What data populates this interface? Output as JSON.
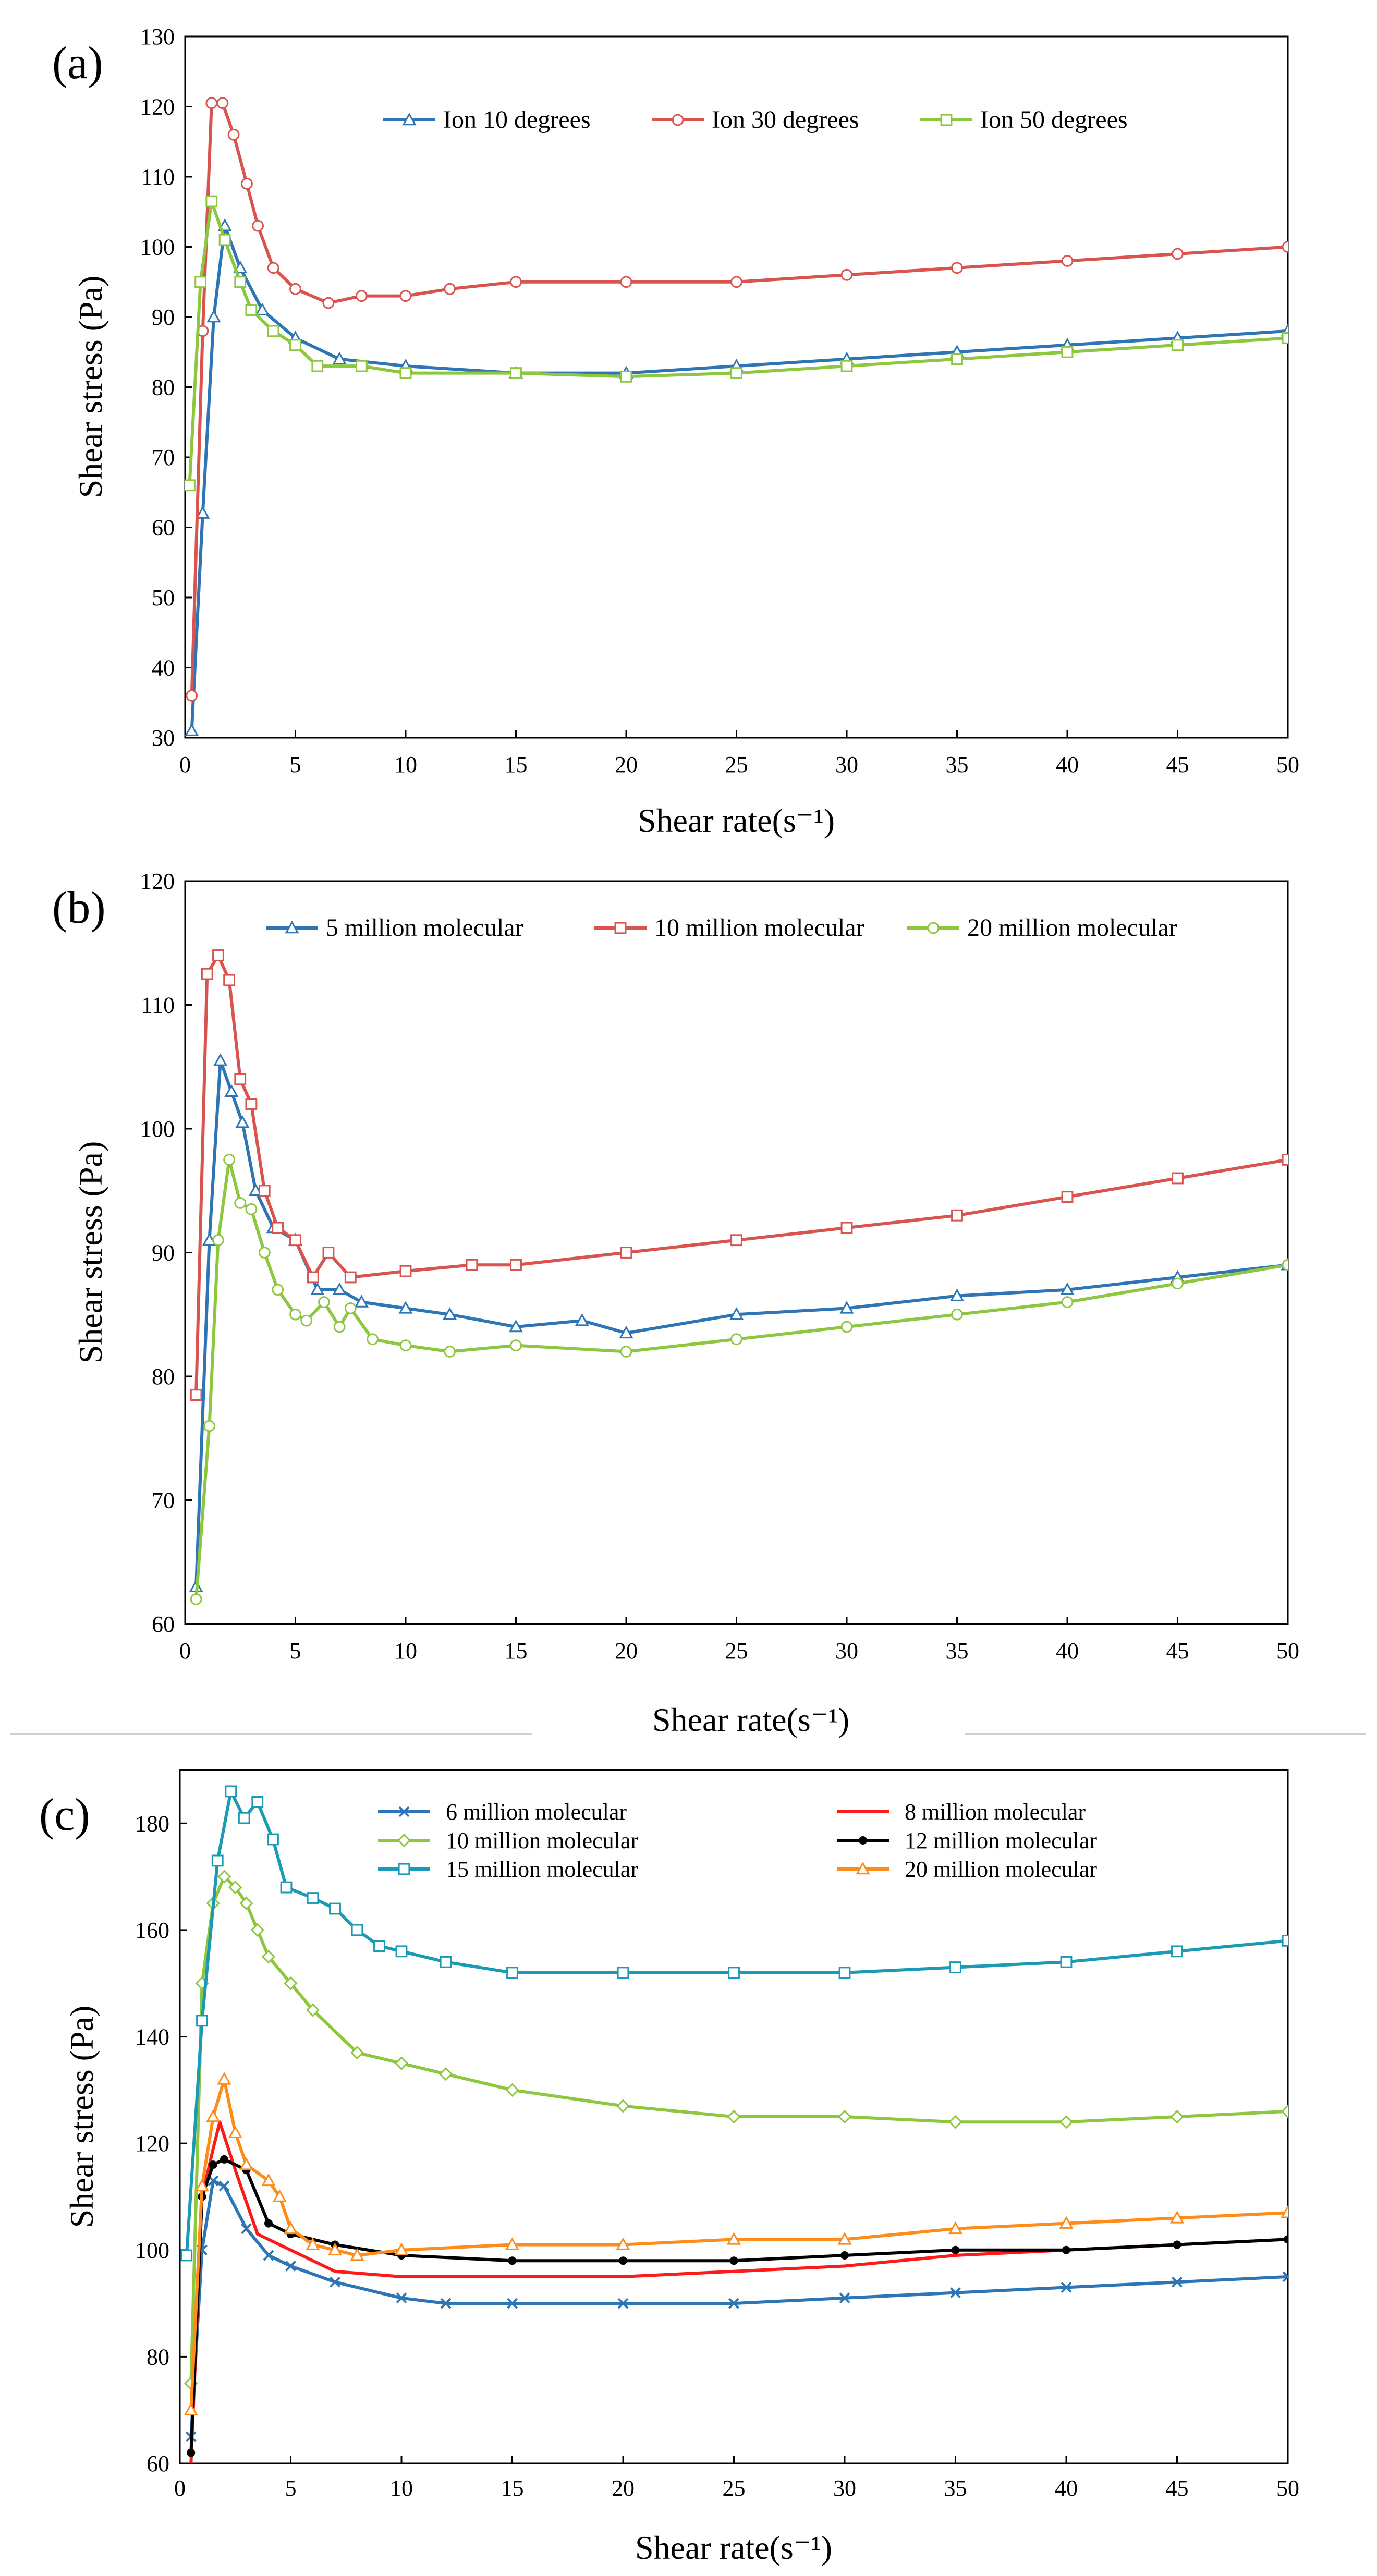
{
  "chart_data": [
    {
      "type": "line",
      "panel": "(a)",
      "xlabel": "Shear rate(s⁻¹)",
      "ylabel": "Shear stress (Pa)",
      "xlim": [
        0,
        50
      ],
      "ylim": [
        30,
        130
      ],
      "xticks": [
        0,
        5,
        10,
        15,
        20,
        25,
        30,
        35,
        40,
        45,
        50
      ],
      "yticks": [
        30,
        40,
        50,
        60,
        70,
        80,
        90,
        100,
        110,
        120,
        130
      ],
      "legend_position": "top",
      "series": [
        {
          "name": "Ion 10 degrees",
          "color": "#2E75B6",
          "marker": "triangle",
          "points": [
            [
              0.3,
              31
            ],
            [
              0.8,
              62
            ],
            [
              1.3,
              90
            ],
            [
              1.8,
              103
            ],
            [
              2.5,
              97
            ],
            [
              3.5,
              91
            ],
            [
              5,
              87
            ],
            [
              7,
              84
            ],
            [
              10,
              83
            ],
            [
              15,
              82
            ],
            [
              20,
              82
            ],
            [
              25,
              83
            ],
            [
              30,
              84
            ],
            [
              35,
              85
            ],
            [
              40,
              86
            ],
            [
              45,
              87
            ],
            [
              50,
              88
            ]
          ]
        },
        {
          "name": "Ion 30 degrees",
          "color": "#D9534F",
          "marker": "circle",
          "points": [
            [
              0.3,
              36
            ],
            [
              0.8,
              88
            ],
            [
              1.2,
              120.5
            ],
            [
              1.7,
              120.5
            ],
            [
              2.2,
              116
            ],
            [
              2.8,
              109
            ],
            [
              3.3,
              103
            ],
            [
              4,
              97
            ],
            [
              5,
              94
            ],
            [
              6.5,
              92
            ],
            [
              8,
              93
            ],
            [
              10,
              93
            ],
            [
              12,
              94
            ],
            [
              15,
              95
            ],
            [
              20,
              95
            ],
            [
              25,
              95
            ],
            [
              30,
              96
            ],
            [
              35,
              97
            ],
            [
              40,
              98
            ],
            [
              45,
              99
            ],
            [
              50,
              100
            ]
          ]
        },
        {
          "name": "Ion 50 degrees",
          "color": "#8DC63F",
          "marker": "square",
          "points": [
            [
              0.2,
              66
            ],
            [
              0.7,
              95
            ],
            [
              1.2,
              106.5
            ],
            [
              1.8,
              101
            ],
            [
              2.5,
              95
            ],
            [
              3,
              91
            ],
            [
              4,
              88
            ],
            [
              5,
              86
            ],
            [
              6,
              83
            ],
            [
              8,
              83
            ],
            [
              10,
              82
            ],
            [
              15,
              82
            ],
            [
              20,
              81.5
            ],
            [
              25,
              82
            ],
            [
              30,
              83
            ],
            [
              35,
              84
            ],
            [
              40,
              85
            ],
            [
              45,
              86
            ],
            [
              50,
              87
            ]
          ]
        }
      ]
    },
    {
      "type": "line",
      "panel": "(b)",
      "xlabel": "Shear rate(s⁻¹)",
      "ylabel": "Shear stress (Pa)",
      "xlim": [
        0,
        50
      ],
      "ylim": [
        60,
        120
      ],
      "xticks": [
        0,
        5,
        10,
        15,
        20,
        25,
        30,
        35,
        40,
        45,
        50
      ],
      "yticks": [
        60,
        70,
        80,
        90,
        100,
        110,
        120
      ],
      "legend_position": "top",
      "series": [
        {
          "name": "5 million molecular",
          "color": "#2E75B6",
          "marker": "triangle",
          "points": [
            [
              0.5,
              63
            ],
            [
              1.1,
              91
            ],
            [
              1.6,
              105.5
            ],
            [
              2.1,
              103
            ],
            [
              2.6,
              100.5
            ],
            [
              3.2,
              95
            ],
            [
              4,
              92
            ],
            [
              5,
              91
            ],
            [
              6,
              87
            ],
            [
              7,
              87
            ],
            [
              8,
              86
            ],
            [
              10,
              85.5
            ],
            [
              12,
              85
            ],
            [
              15,
              84
            ],
            [
              18,
              84.5
            ],
            [
              20,
              83.5
            ],
            [
              25,
              85
            ],
            [
              30,
              85.5
            ],
            [
              35,
              86.5
            ],
            [
              40,
              87
            ],
            [
              45,
              88
            ],
            [
              50,
              89
            ]
          ]
        },
        {
          "name": "10 million molecular",
          "color": "#D9534F",
          "marker": "square",
          "points": [
            [
              0.5,
              78.5
            ],
            [
              1,
              112.5
            ],
            [
              1.5,
              114
            ],
            [
              2,
              112
            ],
            [
              2.5,
              104
            ],
            [
              3,
              102
            ],
            [
              3.6,
              95
            ],
            [
              4.2,
              92
            ],
            [
              5,
              91
            ],
            [
              5.8,
              88
            ],
            [
              6.5,
              90
            ],
            [
              7.5,
              88
            ],
            [
              10,
              88.5
            ],
            [
              13,
              89
            ],
            [
              15,
              89
            ],
            [
              20,
              90
            ],
            [
              25,
              91
            ],
            [
              30,
              92
            ],
            [
              35,
              93
            ],
            [
              40,
              94.5
            ],
            [
              45,
              96
            ],
            [
              50,
              97.5
            ]
          ]
        },
        {
          "name": "20 million molecular",
          "color": "#8DC63F",
          "marker": "circle",
          "points": [
            [
              0.5,
              62
            ],
            [
              1.1,
              76
            ],
            [
              1.5,
              91
            ],
            [
              2,
              97.5
            ],
            [
              2.5,
              94
            ],
            [
              3,
              93.5
            ],
            [
              3.6,
              90
            ],
            [
              4.2,
              87
            ],
            [
              5,
              85
            ],
            [
              5.5,
              84.5
            ],
            [
              6.3,
              86
            ],
            [
              7,
              84
            ],
            [
              7.5,
              85.5
            ],
            [
              8.5,
              83
            ],
            [
              10,
              82.5
            ],
            [
              12,
              82
            ],
            [
              15,
              82.5
            ],
            [
              20,
              82
            ],
            [
              25,
              83
            ],
            [
              30,
              84
            ],
            [
              35,
              85
            ],
            [
              40,
              86
            ],
            [
              45,
              87.5
            ],
            [
              50,
              89
            ]
          ]
        }
      ]
    },
    {
      "type": "line",
      "panel": "(c)",
      "xlabel": "Shear rate(s⁻¹)",
      "ylabel": "Shear stress (Pa)",
      "xlim": [
        0,
        50
      ],
      "ylim": [
        60,
        190
      ],
      "xticks": [
        0,
        5,
        10,
        15,
        20,
        25,
        30,
        35,
        40,
        45,
        50
      ],
      "yticks": [
        60,
        80,
        100,
        120,
        140,
        160,
        180
      ],
      "legend_position": "top",
      "series": [
        {
          "name": "6 million molecular",
          "color": "#2E75B6",
          "marker": "x",
          "points": [
            [
              0.5,
              65
            ],
            [
              1,
              100
            ],
            [
              1.5,
              113
            ],
            [
              2,
              112
            ],
            [
              3,
              104
            ],
            [
              4,
              99
            ],
            [
              5,
              97
            ],
            [
              7,
              94
            ],
            [
              10,
              91
            ],
            [
              12,
              90
            ],
            [
              15,
              90
            ],
            [
              20,
              90
            ],
            [
              25,
              90
            ],
            [
              30,
              91
            ],
            [
              35,
              92
            ],
            [
              40,
              93
            ],
            [
              45,
              94
            ],
            [
              50,
              95
            ]
          ]
        },
        {
          "name": "8 million molecular",
          "color": "#FF1A1A",
          "marker": "none",
          "points": [
            [
              0.5,
              60
            ],
            [
              1,
              110
            ],
            [
              1.5,
              119
            ],
            [
              1.8,
              124
            ],
            [
              2.5,
              115
            ],
            [
              3.5,
              103
            ],
            [
              5,
              100
            ],
            [
              7,
              96
            ],
            [
              10,
              95
            ],
            [
              15,
              95
            ],
            [
              20,
              95
            ],
            [
              25,
              96
            ],
            [
              30,
              97
            ],
            [
              35,
              99
            ],
            [
              40,
              100
            ],
            [
              45,
              101
            ],
            [
              50,
              102
            ]
          ]
        },
        {
          "name": "10 million molecular",
          "color": "#8DC63F",
          "marker": "diamond",
          "points": [
            [
              0.5,
              75
            ],
            [
              1,
              150
            ],
            [
              1.5,
              165
            ],
            [
              2,
              170
            ],
            [
              2.5,
              168
            ],
            [
              3,
              165
            ],
            [
              3.5,
              160
            ],
            [
              4,
              155
            ],
            [
              5,
              150
            ],
            [
              6,
              145
            ],
            [
              8,
              137
            ],
            [
              10,
              135
            ],
            [
              12,
              133
            ],
            [
              15,
              130
            ],
            [
              20,
              127
            ],
            [
              25,
              125
            ],
            [
              30,
              125
            ],
            [
              35,
              124
            ],
            [
              40,
              124
            ],
            [
              45,
              125
            ],
            [
              50,
              126
            ]
          ]
        },
        {
          "name": "12 million molecular",
          "color": "#000000",
          "marker": "dot",
          "points": [
            [
              0.5,
              62
            ],
            [
              1,
              110
            ],
            [
              1.5,
              116
            ],
            [
              2,
              117
            ],
            [
              3,
              115
            ],
            [
              4,
              105
            ],
            [
              5,
              103
            ],
            [
              7,
              101
            ],
            [
              10,
              99
            ],
            [
              15,
              98
            ],
            [
              20,
              98
            ],
            [
              25,
              98
            ],
            [
              30,
              99
            ],
            [
              35,
              100
            ],
            [
              40,
              100
            ],
            [
              45,
              101
            ],
            [
              50,
              102
            ]
          ]
        },
        {
          "name": "15 million molecular",
          "color": "#1B9AB5",
          "marker": "square",
          "points": [
            [
              0.3,
              99
            ],
            [
              1,
              143
            ],
            [
              1.7,
              173
            ],
            [
              2.3,
              186
            ],
            [
              2.9,
              181
            ],
            [
              3.5,
              184
            ],
            [
              4.2,
              177
            ],
            [
              4.8,
              168
            ],
            [
              6,
              166
            ],
            [
              7,
              164
            ],
            [
              8,
              160
            ],
            [
              9,
              157
            ],
            [
              10,
              156
            ],
            [
              12,
              154
            ],
            [
              15,
              152
            ],
            [
              20,
              152
            ],
            [
              25,
              152
            ],
            [
              30,
              152
            ],
            [
              35,
              153
            ],
            [
              40,
              154
            ],
            [
              45,
              156
            ],
            [
              50,
              158
            ]
          ]
        },
        {
          "name": "20 million molecular",
          "color": "#FF8C1A",
          "marker": "triangle",
          "points": [
            [
              0.5,
              70
            ],
            [
              1,
              112
            ],
            [
              1.5,
              125
            ],
            [
              2,
              132
            ],
            [
              2.5,
              122
            ],
            [
              3,
              116
            ],
            [
              4,
              113
            ],
            [
              4.5,
              110
            ],
            [
              5,
              104
            ],
            [
              6,
              101
            ],
            [
              7,
              100
            ],
            [
              8,
              99
            ],
            [
              10,
              100
            ],
            [
              15,
              101
            ],
            [
              20,
              101
            ],
            [
              25,
              102
            ],
            [
              30,
              102
            ],
            [
              35,
              104
            ],
            [
              40,
              105
            ],
            [
              45,
              106
            ],
            [
              50,
              107
            ]
          ]
        }
      ]
    }
  ]
}
